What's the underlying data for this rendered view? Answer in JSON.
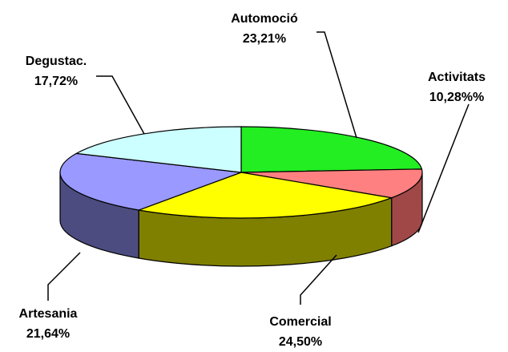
{
  "chart_data": {
    "type": "pie",
    "three_d": true,
    "categories": [
      "Automoció",
      "Activitats",
      "Comercial",
      "Artesania",
      "Degustac."
    ],
    "values": [
      23.21,
      10.28,
      24.5,
      21.64,
      17.72
    ],
    "value_labels": [
      "23,21%",
      "10,28%%",
      "24,50%",
      "21,64%",
      "17,72%"
    ],
    "colors": [
      "#22ee22",
      "#ff8080",
      "#ffff00",
      "#9999ff",
      "#ccffff"
    ],
    "side_colors": [
      "#118811",
      "#a04848",
      "#808000",
      "#4c4c80",
      "#669999"
    ]
  }
}
